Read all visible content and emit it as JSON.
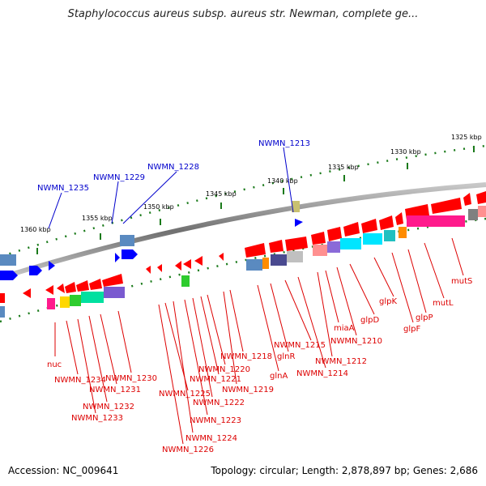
{
  "title": "Staphylococcus aureus subsp. aureus str. Newman, complete ge...",
  "footer": {
    "accession": "Accession: NC_009641",
    "summary": "Topology: circular; Length: 2,878,897 bp; Genes: 2,686"
  },
  "kbp_ticks": [
    "1325 kbp",
    "1330 kbp",
    "1335 kbp",
    "1340 kbp",
    "1345 kbp",
    "1350 kbp",
    "1355 kbp",
    "1360 kbp"
  ],
  "top_labels": [
    "NWMN_1213",
    "NWMN_1228",
    "NWMN_1229",
    "NWMN_1235"
  ],
  "bottom_labels": [
    "mutS",
    "mutL",
    "glpP",
    "glpF",
    "glpK",
    "glpD",
    "NWMN_1210",
    "miaA",
    "NWMN_1212",
    "NWMN_1214",
    "NWMN_1215",
    "glnR",
    "glnA",
    "NWMN_1218",
    "NWMN_1219",
    "NWMN_1220",
    "NWMN_1221",
    "NWMN_1222",
    "NWMN_1223",
    "NWMN_1224",
    "NWMN_1225",
    "NWMN_1226",
    "NWMN_1230",
    "NWMN_1231",
    "NWMN_1232",
    "NWMN_1233",
    "NWMN_1234",
    "nuc"
  ],
  "colors": {
    "backbone": "#8a8a8a",
    "forward_gene": "#ff0000",
    "reverse_gene": "#0000ff",
    "label_red": "#dd0000",
    "label_blue": "#0000cc",
    "tick_green": "#1a7a1a"
  }
}
